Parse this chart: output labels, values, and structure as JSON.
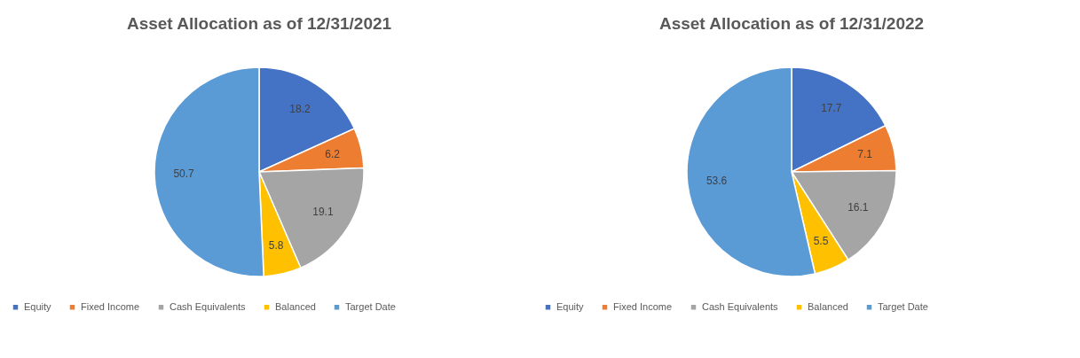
{
  "chart_data": [
    {
      "type": "pie",
      "title": "Asset Allocation as of 12/31/2021",
      "categories": [
        "Equity",
        "Fixed Income",
        "Cash Equivalents",
        "Balanced",
        "Target Date"
      ],
      "values": [
        18.2,
        6.2,
        19.1,
        5.8,
        50.7
      ],
      "colors": [
        "#4472c4",
        "#ed7d31",
        "#a5a5a5",
        "#ffc000",
        "#5b9bd5"
      ],
      "data_labels": true,
      "legend": "bottom"
    },
    {
      "type": "pie",
      "title": "Asset Allocation as of 12/31/2022",
      "categories": [
        "Equity",
        "Fixed Income",
        "Cash Equivalents",
        "Balanced",
        "Target Date"
      ],
      "values": [
        17.7,
        7.1,
        16.1,
        5.5,
        53.6
      ],
      "colors": [
        "#4472c4",
        "#ed7d31",
        "#a5a5a5",
        "#ffc000",
        "#5b9bd5"
      ],
      "data_labels": true,
      "legend": "bottom"
    }
  ]
}
